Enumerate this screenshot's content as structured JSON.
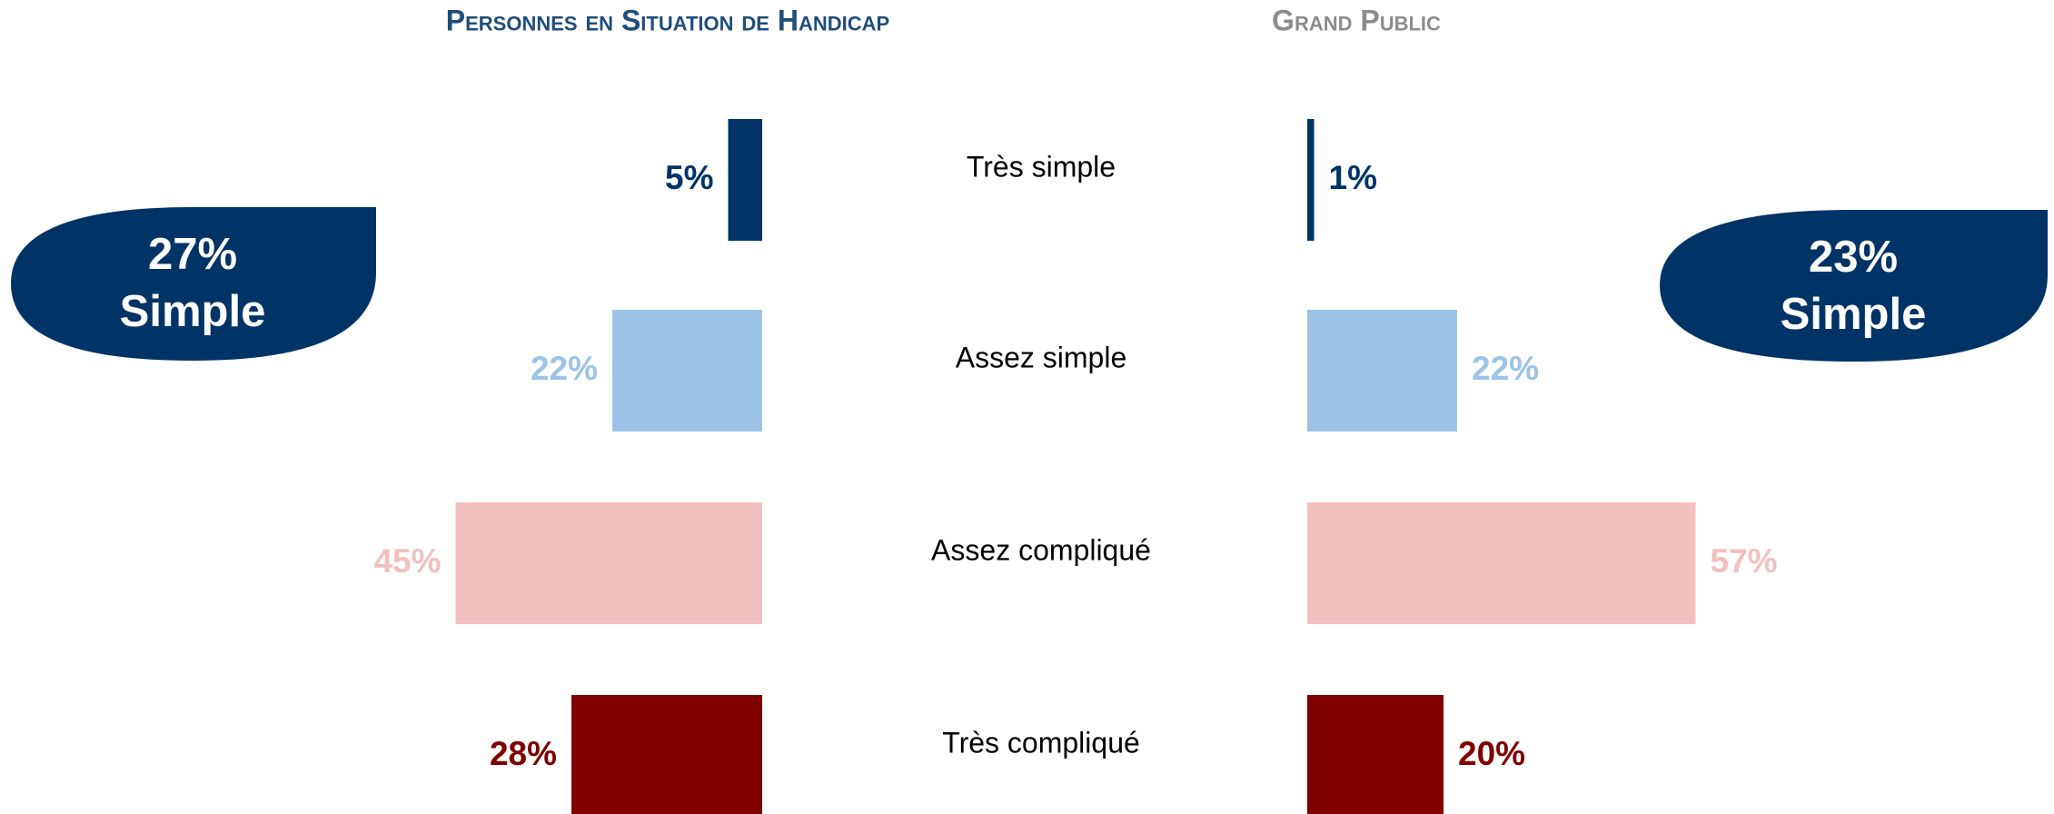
{
  "chart_data": {
    "type": "bar",
    "categories": [
      "Très simple",
      "Assez simple",
      "Assez compliqué",
      "Très compliqué"
    ],
    "colors": [
      "#003366",
      "#9dc3e6",
      "#f2c0c0",
      "#800000"
    ],
    "series": [
      {
        "name": "Personnes en Situation de Handicap",
        "color": "#1f4e79",
        "values": [
          5,
          22,
          45,
          28
        ],
        "value_labels": [
          "5%",
          "22%",
          "45%",
          "28%"
        ]
      },
      {
        "name": "Grand Public",
        "color": "#8c8c8c",
        "values": [
          1,
          22,
          57,
          20
        ],
        "value_labels": [
          "1%",
          "22%",
          "57%",
          "20%"
        ]
      }
    ],
    "annotations": [
      {
        "value": 27,
        "label": "27%",
        "text": "Simple"
      },
      {
        "value": 23,
        "label": "23%",
        "text": "Simple"
      }
    ]
  }
}
